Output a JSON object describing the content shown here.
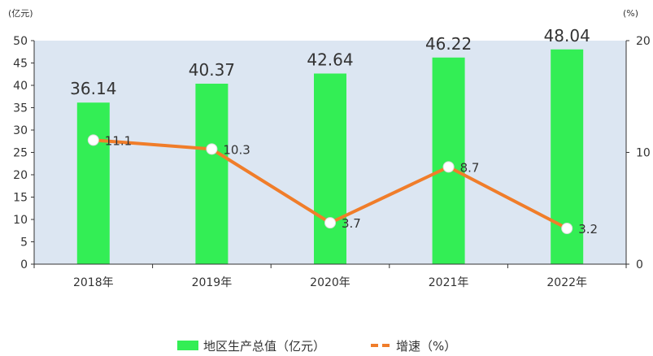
{
  "chart_data": {
    "type": "bar",
    "categories": [
      "2018年",
      "2019年",
      "2020年",
      "2021年",
      "2022年"
    ],
    "series": [
      {
        "name": "地区生产总值（亿元）",
        "type": "bar",
        "axis": "left",
        "values": [
          36.14,
          40.37,
          42.64,
          46.22,
          48.04
        ],
        "color": "#33ee55"
      },
      {
        "name": "增速（%）",
        "type": "line",
        "axis": "right",
        "values": [
          11.1,
          10.3,
          3.7,
          8.7,
          3.2
        ],
        "color": "#f07d2a"
      }
    ],
    "left_axis": {
      "unit": "(亿元)",
      "ylim": [
        0,
        50
      ],
      "ticks": [
        "0",
        "5",
        "10",
        "15",
        "20",
        "25",
        "30",
        "35",
        "40",
        "45",
        "50"
      ]
    },
    "right_axis": {
      "unit": "(%)",
      "ylim": [
        0,
        20
      ],
      "ticks": [
        "0",
        "10",
        "20"
      ]
    },
    "plot_background": "#dce6f2",
    "grid": false,
    "legend_position": "bottom"
  }
}
